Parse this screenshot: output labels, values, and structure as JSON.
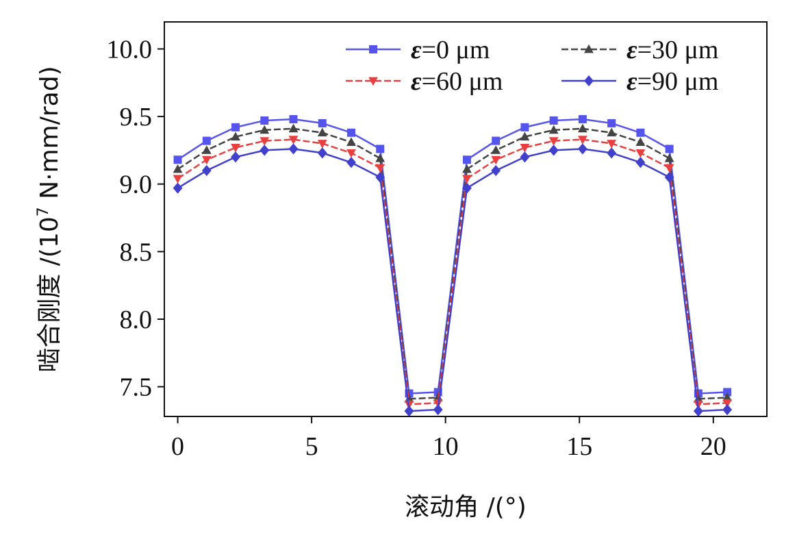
{
  "chart_data": {
    "type": "line",
    "xlabel": "滚动角 /(°)",
    "ylabel_main": "啮合刚度 /(10",
    "ylabel_sup": "7",
    "ylabel_rest": " N·mm/rad)",
    "xlim": [
      -0.5,
      22.0
    ],
    "ylim": [
      7.28,
      10.2
    ],
    "xticks": [
      0,
      5,
      10,
      15,
      20
    ],
    "xtick_labels": [
      "0",
      "5",
      "10",
      "15",
      "20"
    ],
    "yticks": [
      7.5,
      8.0,
      8.5,
      9.0,
      9.5,
      10.0
    ],
    "ytick_labels": [
      "7.5",
      "8.0",
      "8.5",
      "9.0",
      "9.5",
      "10.0"
    ],
    "grid": false,
    "legend_position": "top-right",
    "x": [
      0,
      1.08,
      2.16,
      3.24,
      4.32,
      5.4,
      6.48,
      7.56,
      8.64,
      9.72,
      10.8,
      11.88,
      12.96,
      14.04,
      15.12,
      16.2,
      17.28,
      18.36,
      19.44,
      20.52
    ],
    "series": [
      {
        "name": "=0 μm",
        "eps": "ε",
        "color": "#5555ee",
        "line_style": "solid",
        "marker": "square",
        "values": [
          9.18,
          9.32,
          9.42,
          9.47,
          9.48,
          9.45,
          9.38,
          9.26,
          7.45,
          7.46,
          9.18,
          9.32,
          9.42,
          9.47,
          9.48,
          9.45,
          9.38,
          9.26,
          7.45,
          7.46
        ]
      },
      {
        "name": "=30 μm",
        "eps": "ε",
        "color": "#444444",
        "line_style": "dashed",
        "marker": "triangle-up",
        "values": [
          9.11,
          9.25,
          9.35,
          9.4,
          9.41,
          9.38,
          9.31,
          9.19,
          7.41,
          7.42,
          9.11,
          9.25,
          9.35,
          9.4,
          9.41,
          9.38,
          9.31,
          9.19,
          7.41,
          7.42
        ]
      },
      {
        "name": "=60 μm",
        "eps": "ε",
        "color": "#e84040",
        "line_style": "dashed",
        "marker": "triangle-down",
        "values": [
          9.04,
          9.18,
          9.27,
          9.32,
          9.33,
          9.3,
          9.23,
          9.12,
          7.37,
          7.38,
          9.04,
          9.18,
          9.27,
          9.32,
          9.33,
          9.3,
          9.23,
          9.12,
          7.37,
          7.38
        ]
      },
      {
        "name": "=90 μm",
        "eps": "ε",
        "color": "#4040cc",
        "line_style": "solid",
        "marker": "diamond",
        "values": [
          8.97,
          9.1,
          9.2,
          9.25,
          9.26,
          9.23,
          9.16,
          9.05,
          7.32,
          7.33,
          8.97,
          9.1,
          9.2,
          9.25,
          9.26,
          9.23,
          9.16,
          9.05,
          7.32,
          7.33
        ]
      }
    ]
  }
}
